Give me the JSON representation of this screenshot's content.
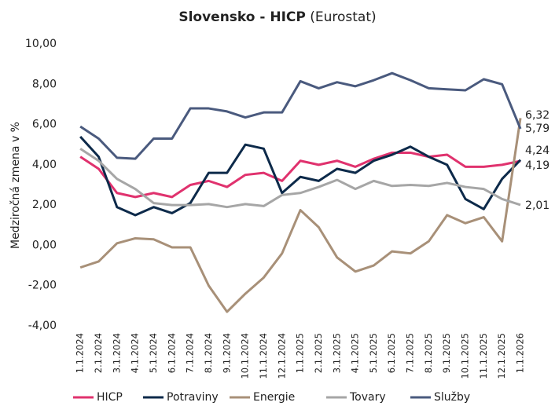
{
  "chart_data": {
    "type": "line",
    "title": "Slovensko - HICP",
    "source": "(Eurostat)",
    "y_label": "Medziročná zmena v %",
    "categories": [
      "1.1.2024",
      "2.1.2024",
      "3.1.2024",
      "4.1.2024",
      "5.1.2024",
      "6.1.2024",
      "7.1.2024",
      "8.1.2024",
      "9.1.2024",
      "10.1.2024",
      "11.1.2024",
      "12.1.2024",
      "1.1.2025",
      "2.1.2025",
      "3.1.2025",
      "4.1.2025",
      "5.1.2025",
      "6.1.2025",
      "7.1.2025",
      "8.1.2025",
      "9.1.2025",
      "10.1.2025",
      "11.1.2025",
      "12.1.2025",
      "1.1.2026"
    ],
    "ylim": [
      -4,
      10
    ],
    "yticks": [
      {
        "value": -4,
        "label": "-4,00"
      },
      {
        "value": -2,
        "label": "-2,00"
      },
      {
        "value": 0,
        "label": "0,00"
      },
      {
        "value": 2,
        "label": "2,00"
      },
      {
        "value": 4,
        "label": "4,00"
      },
      {
        "value": 6,
        "label": "6,00"
      },
      {
        "value": 8,
        "label": "8,00"
      },
      {
        "value": 10,
        "label": "10,00"
      }
    ],
    "grid": false,
    "legend": "bottom",
    "series": [
      {
        "name": "HICP",
        "color": "#e0326e",
        "label_color": "#e0326e",
        "values": [
          4.4,
          3.8,
          2.6,
          2.4,
          2.6,
          2.4,
          3.0,
          3.2,
          2.9,
          3.5,
          3.6,
          3.2,
          4.2,
          4.0,
          4.2,
          3.9,
          4.3,
          4.6,
          4.6,
          4.4,
          4.5,
          3.9,
          3.9,
          4.0,
          4.19
        ],
        "value_labels": [
          null,
          null,
          null,
          null,
          null,
          null,
          null,
          null,
          null,
          null,
          null,
          null,
          null,
          null,
          null,
          null,
          null,
          null,
          null,
          null,
          null,
          null,
          null,
          null,
          "4,19"
        ]
      },
      {
        "name": "Potraviny",
        "color": "#0d2a4a",
        "label_color": "#111111",
        "values": [
          5.4,
          4.4,
          1.9,
          1.5,
          1.9,
          1.6,
          2.1,
          3.6,
          3.6,
          5.0,
          4.8,
          2.6,
          3.4,
          3.2,
          3.8,
          3.6,
          4.2,
          4.5,
          4.9,
          4.4,
          4.0,
          2.3,
          1.8,
          3.3,
          4.24
        ],
        "value_labels": [
          null,
          null,
          null,
          null,
          null,
          null,
          null,
          null,
          null,
          null,
          null,
          null,
          null,
          null,
          null,
          null,
          null,
          null,
          null,
          null,
          null,
          null,
          null,
          null,
          "4,24"
        ]
      },
      {
        "name": "Energie",
        "color": "#a89078",
        "label_color": "#a89078",
        "values": [
          -1.1,
          -0.8,
          0.1,
          0.35,
          0.3,
          -0.1,
          -0.1,
          -2.0,
          -3.3,
          -2.4,
          -1.6,
          -0.4,
          1.75,
          0.9,
          -0.6,
          -1.3,
          -1.0,
          -0.3,
          -0.4,
          0.2,
          1.5,
          1.1,
          1.4,
          0.2,
          6.32
        ],
        "value_labels": [
          null,
          null,
          null,
          null,
          null,
          null,
          null,
          null,
          null,
          null,
          null,
          null,
          null,
          null,
          null,
          null,
          null,
          null,
          null,
          null,
          null,
          null,
          null,
          null,
          "6,32"
        ]
      },
      {
        "name": "Tovary",
        "color": "#a6a6a6",
        "label_color": "#a6a6a6",
        "values": [
          4.8,
          4.2,
          3.3,
          2.8,
          2.1,
          2.0,
          2.0,
          2.05,
          1.9,
          2.05,
          1.95,
          2.5,
          2.6,
          2.9,
          3.25,
          2.8,
          3.2,
          2.95,
          3.0,
          2.95,
          3.1,
          2.9,
          2.8,
          2.3,
          2.01
        ],
        "value_labels": [
          null,
          null,
          null,
          null,
          null,
          null,
          null,
          null,
          null,
          null,
          null,
          null,
          null,
          null,
          null,
          null,
          null,
          null,
          null,
          null,
          null,
          null,
          null,
          null,
          "2,01"
        ]
      },
      {
        "name": "Služby",
        "color": "#4a5a7e",
        "label_color": "#4a5a7e",
        "values": [
          5.9,
          5.3,
          4.35,
          4.3,
          5.3,
          5.3,
          6.8,
          6.8,
          6.65,
          6.35,
          6.6,
          6.6,
          8.15,
          7.8,
          8.1,
          7.9,
          8.2,
          8.55,
          8.2,
          7.8,
          7.75,
          7.7,
          8.25,
          8.0,
          5.79
        ],
        "value_labels": [
          null,
          null,
          null,
          null,
          null,
          null,
          null,
          null,
          null,
          null,
          null,
          null,
          null,
          null,
          null,
          null,
          null,
          null,
          null,
          null,
          null,
          null,
          null,
          null,
          "5,79"
        ]
      }
    ]
  }
}
